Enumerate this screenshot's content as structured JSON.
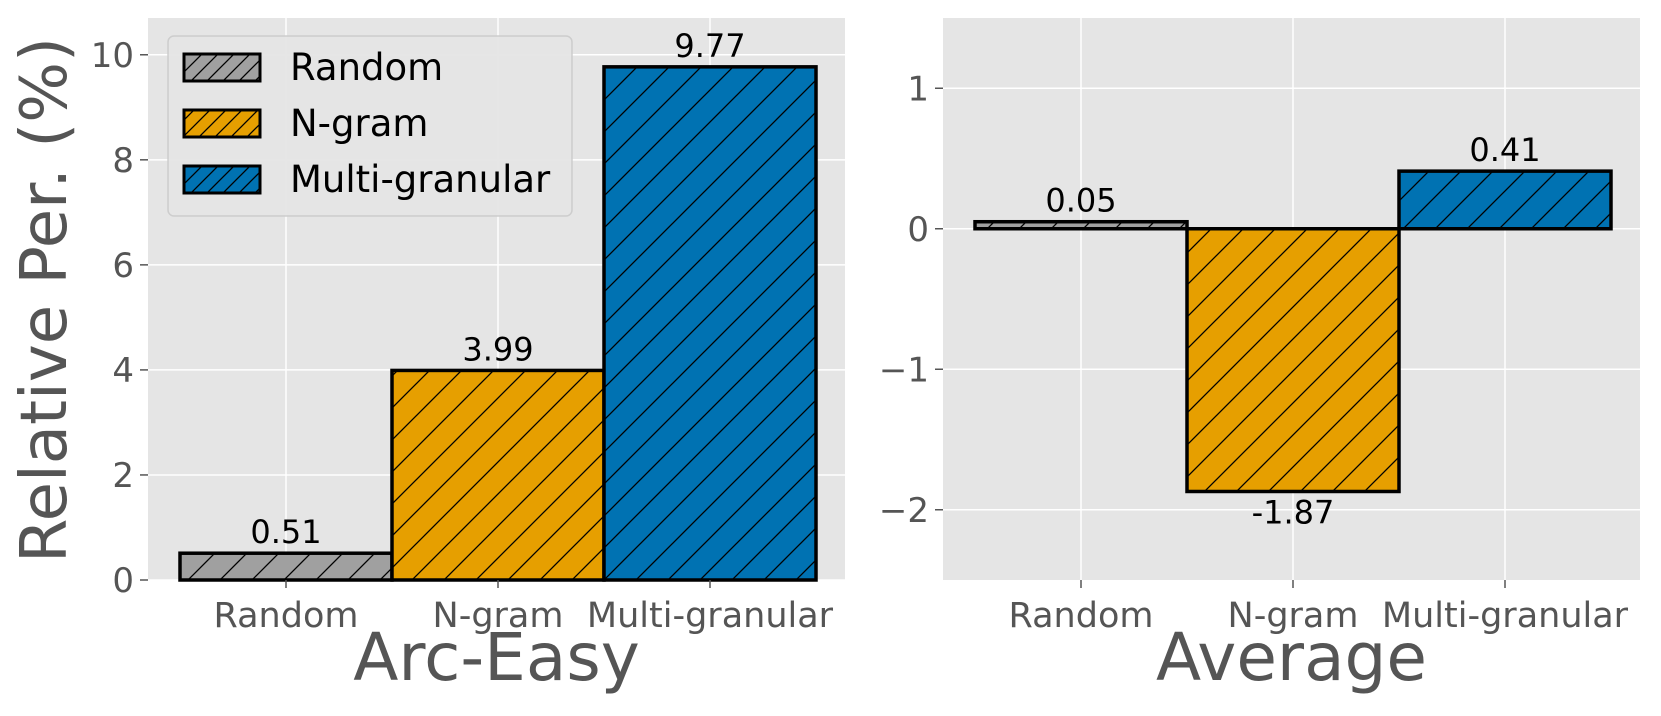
{
  "figure": {
    "ylabel": "Relative Per. (%)"
  },
  "colors": {
    "Random": "#a0a0a0",
    "N-gram": "#e69f00",
    "Multi-granular": "#0072b2",
    "panel_bg": "#e5e5e5",
    "grid": "#ffffff",
    "tick_text": "#555555"
  },
  "legend": {
    "placement": "top-left of first panel",
    "entries": [
      "Random",
      "N-gram",
      "Multi-granular"
    ]
  },
  "chart_data": [
    {
      "type": "bar",
      "xlabel": "Arc-Easy",
      "ylabel": "Relative Per. (%)",
      "categories": [
        "Random",
        "N-gram",
        "Multi-granular"
      ],
      "values": [
        0.51,
        3.99,
        9.77
      ],
      "data_labels": [
        "0.51",
        "3.99",
        "9.77"
      ],
      "ylim": [
        0,
        10.7
      ],
      "yticks": [
        0,
        2,
        4,
        6,
        8,
        10
      ],
      "ytick_labels": [
        "0",
        "2",
        "4",
        "6",
        "8",
        "10"
      ],
      "grid": true,
      "hatch": "diagonal"
    },
    {
      "type": "bar",
      "xlabel": "Average",
      "ylabel": "",
      "categories": [
        "Random",
        "N-gram",
        "Multi-granular"
      ],
      "values": [
        0.05,
        -1.87,
        0.41
      ],
      "data_labels": [
        "0.05",
        "-1.87",
        "0.41"
      ],
      "ylim": [
        -2.5,
        1.5
      ],
      "yticks": [
        -2,
        -1,
        0,
        1
      ],
      "ytick_labels": [
        "−2",
        "−1",
        "0",
        "1"
      ],
      "grid": true,
      "hatch": "diagonal"
    }
  ]
}
